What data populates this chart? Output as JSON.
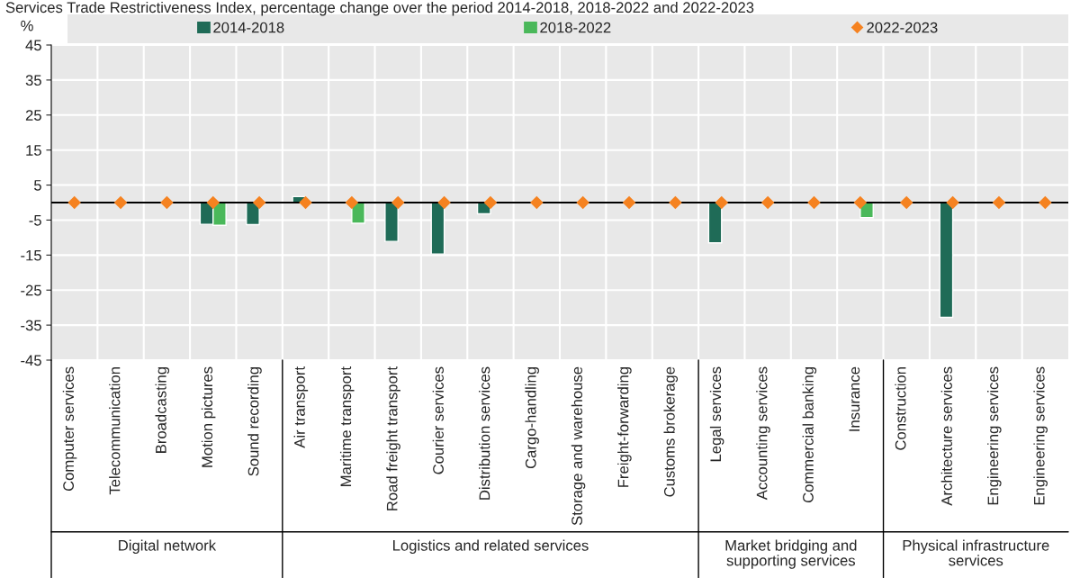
{
  "chart_data": {
    "type": "bar",
    "title": "Services Trade Restrictiveness Index, percentage change over the period 2014-2018, 2018-2022 and 2022-2023",
    "ylabel": "%",
    "categories": [
      "Computer services",
      "Telecommunication",
      "Broadcasting",
      "Motion pictures",
      "Sound recording",
      "Air transport",
      "Maritime transport",
      "Road freight transport",
      "Courier services",
      "Distribution services",
      "Cargo-handling",
      "Storage and warehouse",
      "Freight-forwarding",
      "Customs brokerage",
      "Legal services",
      "Accounting services",
      "Commercial banking",
      "Insurance",
      "Construction",
      "Architecture services",
      "Engineering services",
      "Engineering services"
    ],
    "series": [
      {
        "name": "2014-2018",
        "color": "#1f6b57",
        "values": [
          null,
          null,
          null,
          -6.2,
          -6.3,
          1.7,
          null,
          -11.1,
          -14.7,
          -3.2,
          null,
          null,
          null,
          null,
          -11.5,
          null,
          null,
          null,
          null,
          -32.8,
          null,
          null
        ]
      },
      {
        "name": "2018-2022",
        "color": "#4ab85a",
        "values": [
          null,
          null,
          null,
          -6.5,
          null,
          null,
          -5.9,
          null,
          null,
          null,
          null,
          null,
          null,
          null,
          null,
          null,
          null,
          -4.3,
          null,
          null,
          null,
          null
        ]
      },
      {
        "name": "2022-2023",
        "type": "scatter",
        "marker": "diamond",
        "color": "#f58220",
        "values": [
          0,
          0,
          0,
          0,
          0,
          0,
          0,
          0,
          0,
          0,
          0,
          0,
          0,
          0,
          0,
          0,
          0,
          0,
          0,
          0,
          0,
          0
        ]
      }
    ],
    "ylim": [
      -45,
      45
    ],
    "yticks": [
      -45,
      -35,
      -25,
      -15,
      -5,
      5,
      15,
      25,
      35,
      45
    ],
    "grid": true,
    "legend": "top",
    "annotations": [
      "Digital network",
      "Logistics and related services",
      "Market bridging and\nsupporting services",
      "Physical infrastructure\nservices"
    ]
  }
}
